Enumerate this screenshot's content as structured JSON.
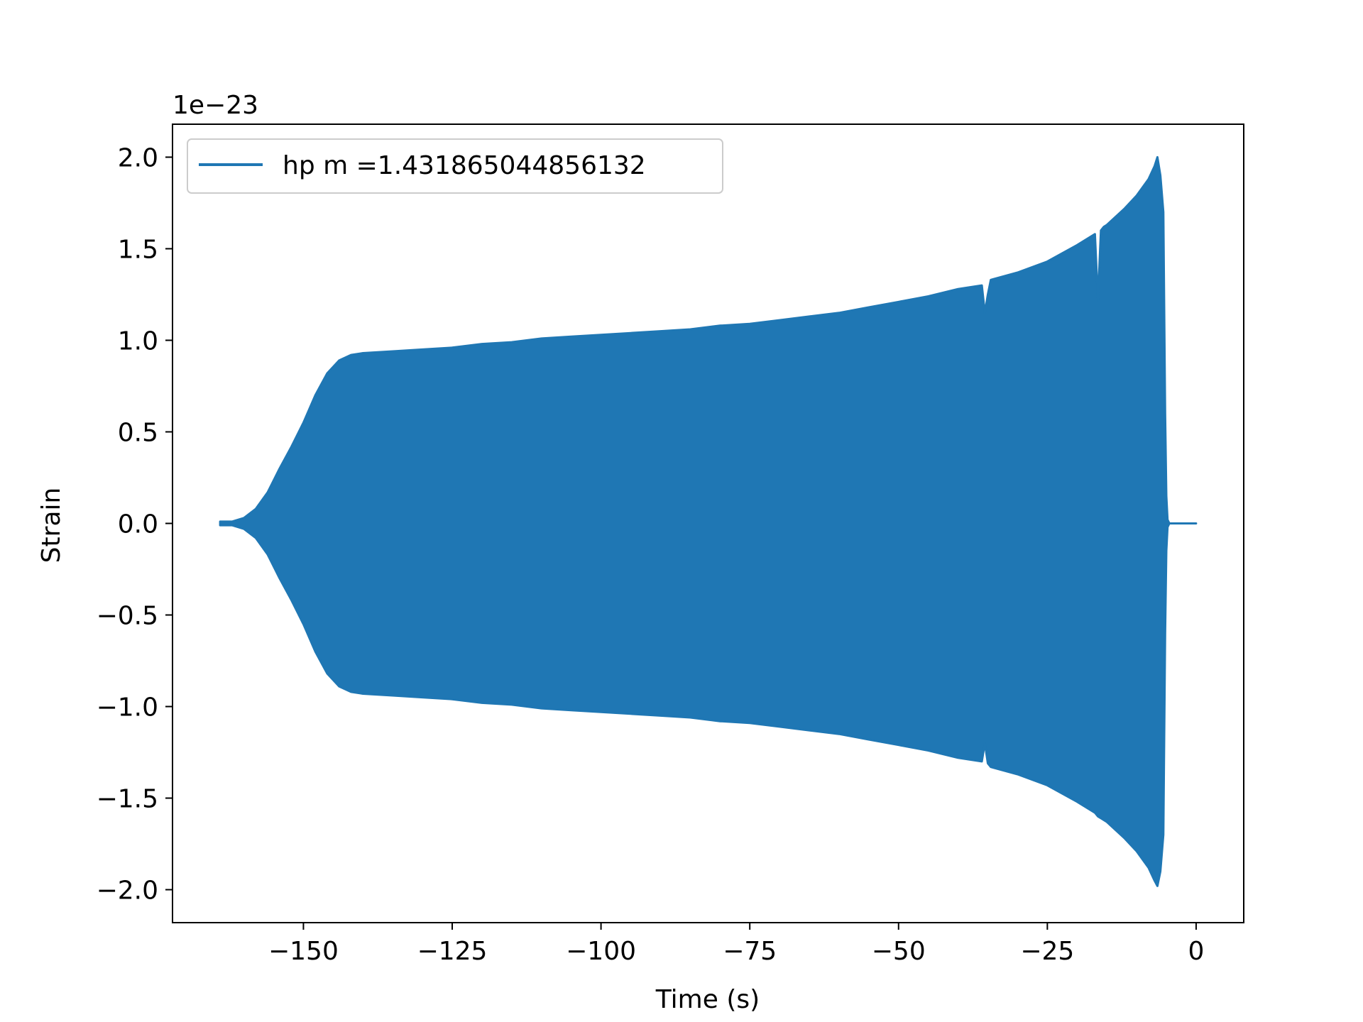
{
  "chart_data": {
    "type": "line",
    "title": "",
    "xlabel": "Time (s)",
    "ylabel": "Strain",
    "y_scale_label": "1e−23",
    "y_scale_factor": 1e-23,
    "xlim": [
      -172,
      8
    ],
    "ylim": [
      -2.18,
      2.18
    ],
    "xticks": [
      -150,
      -125,
      -100,
      -75,
      -50,
      -25,
      0
    ],
    "xtick_labels": [
      "−150",
      "−125",
      "−100",
      "−75",
      "−50",
      "−25",
      "0"
    ],
    "yticks": [
      -2.0,
      -1.5,
      -1.0,
      -0.5,
      0.0,
      0.5,
      1.0,
      1.5,
      2.0
    ],
    "ytick_labels": [
      "−2.0",
      "−1.5",
      "−1.0",
      "−0.5",
      "0.0",
      "0.5",
      "1.0",
      "1.5",
      "2.0"
    ],
    "grid": false,
    "legend_position": "top-left",
    "series": [
      {
        "name": "hp m =1.431865044856132",
        "color": "#1f77b4",
        "envelope": {
          "time": [
            -164,
            -162,
            -160,
            -158,
            -156,
            -154,
            -152,
            -150,
            -148,
            -146,
            -144,
            -142,
            -140,
            -135,
            -130,
            -125,
            -120,
            -115,
            -110,
            -105,
            -100,
            -95,
            -90,
            -85,
            -80,
            -75,
            -70,
            -65,
            -60,
            -55,
            -50,
            -45,
            -40,
            -36,
            -35.5,
            -35,
            -34.5,
            -30,
            -25,
            -20,
            -17,
            -16.5,
            -16,
            -15.5,
            -15,
            -12,
            -10,
            -8,
            -7,
            -6.5,
            -6,
            -5.5,
            -5.2,
            -5,
            -4.8,
            -4.5,
            0
          ],
          "upper": [
            0.01,
            0.01,
            0.03,
            0.08,
            0.17,
            0.3,
            0.42,
            0.55,
            0.7,
            0.82,
            0.89,
            0.92,
            0.93,
            0.94,
            0.95,
            0.96,
            0.98,
            0.99,
            1.01,
            1.02,
            1.03,
            1.04,
            1.05,
            1.06,
            1.08,
            1.09,
            1.11,
            1.13,
            1.15,
            1.18,
            1.21,
            1.24,
            1.28,
            1.3,
            1.15,
            1.25,
            1.33,
            1.37,
            1.43,
            1.52,
            1.58,
            1.22,
            1.6,
            1.62,
            1.63,
            1.72,
            1.79,
            1.88,
            1.95,
            2.0,
            1.9,
            1.7,
            0.6,
            0.15,
            0.02,
            0.0,
            0.0
          ],
          "lower": [
            -0.01,
            -0.01,
            -0.03,
            -0.08,
            -0.17,
            -0.3,
            -0.42,
            -0.55,
            -0.7,
            -0.82,
            -0.89,
            -0.92,
            -0.93,
            -0.94,
            -0.95,
            -0.96,
            -0.98,
            -0.99,
            -1.01,
            -1.02,
            -1.03,
            -1.04,
            -1.05,
            -1.06,
            -1.08,
            -1.09,
            -1.11,
            -1.13,
            -1.15,
            -1.18,
            -1.21,
            -1.24,
            -1.28,
            -1.3,
            -1.2,
            -1.31,
            -1.33,
            -1.37,
            -1.43,
            -1.52,
            -1.58,
            -1.6,
            -1.61,
            -1.62,
            -1.63,
            -1.72,
            -1.79,
            -1.88,
            -1.95,
            -1.98,
            -1.9,
            -1.7,
            -0.6,
            -0.15,
            -0.02,
            0.0,
            0.0
          ]
        }
      }
    ]
  }
}
